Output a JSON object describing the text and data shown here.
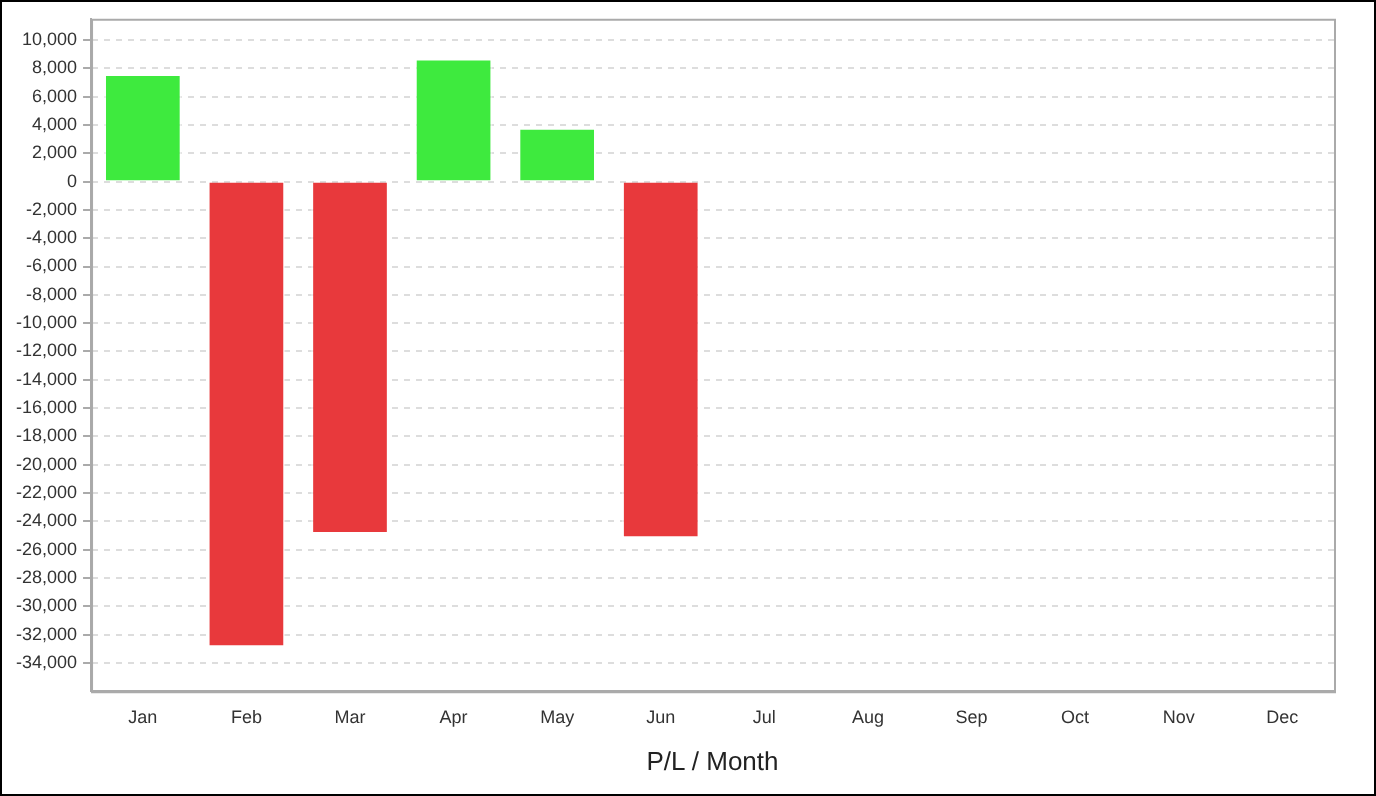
{
  "chart_data": {
    "type": "bar",
    "xlabel": "P/L / Month",
    "categories": [
      "Jan",
      "Feb",
      "Mar",
      "Apr",
      "May",
      "Jun",
      "Jul",
      "Aug",
      "Sep",
      "Oct",
      "Nov",
      "Dec"
    ],
    "values": [
      7600,
      -32900,
      -24900,
      8700,
      3800,
      -25200,
      null,
      null,
      null,
      null,
      null,
      null
    ],
    "colors": [
      "#3eea3e",
      "#e8393c",
      "#e8393c",
      "#3eea3e",
      "#3eea3e",
      "#e8393c",
      null,
      null,
      null,
      null,
      null,
      null
    ],
    "ylim": [
      -36000,
      11500
    ],
    "yticks": [
      {
        "value": -34000,
        "label": "-34,000"
      },
      {
        "value": -32000,
        "label": "-32,000"
      },
      {
        "value": -30000,
        "label": "-30,000"
      },
      {
        "value": -28000,
        "label": "-28,000"
      },
      {
        "value": -26000,
        "label": "-26,000"
      },
      {
        "value": -24000,
        "label": "-24,000"
      },
      {
        "value": -22000,
        "label": "-22,000"
      },
      {
        "value": -20000,
        "label": "-20,000"
      },
      {
        "value": -18000,
        "label": "-18,000"
      },
      {
        "value": -16000,
        "label": "-16,000"
      },
      {
        "value": -14000,
        "label": "-14,000"
      },
      {
        "value": -12000,
        "label": "-12,000"
      },
      {
        "value": -10000,
        "label": "-10,000"
      },
      {
        "value": -8000,
        "label": "-8,000"
      },
      {
        "value": -6000,
        "label": "-6,000"
      },
      {
        "value": -4000,
        "label": "-4,000"
      },
      {
        "value": -2000,
        "label": "-2,000"
      },
      0,
      {
        "value": 2000,
        "label": "2,000"
      },
      {
        "value": 4000,
        "label": "4,000"
      },
      {
        "value": 6000,
        "label": "6,000"
      },
      {
        "value": 8000,
        "label": "8,000"
      },
      {
        "value": 10000,
        "label": "10,000"
      }
    ],
    "grid": "y",
    "legend": false
  }
}
